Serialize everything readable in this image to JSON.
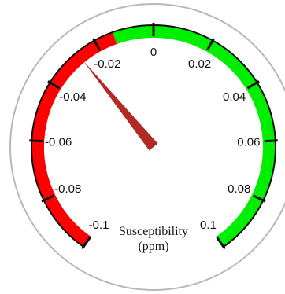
{
  "chart_data": {
    "type": "gauge",
    "title": "Susceptibility",
    "units": "(ppm)",
    "range": [
      -0.1,
      0.1
    ],
    "value": -0.027,
    "ticks": [
      -0.1,
      -0.08,
      -0.06,
      -0.04,
      -0.02,
      0,
      0.02,
      0.04,
      0.06,
      0.08,
      0.1
    ],
    "tick_labels": [
      "-0.1",
      "-0.08",
      "-0.06",
      "-0.04",
      "-0.02",
      "0",
      "0.02",
      "0.04",
      "0.06",
      "0.08",
      "0.1"
    ],
    "bands": [
      {
        "from": -0.1,
        "to": -0.0135,
        "color": "#ff0000"
      },
      {
        "from": -0.0135,
        "to": 0.1,
        "color": "#00ee00"
      }
    ],
    "needle_color": "#b22a24"
  }
}
